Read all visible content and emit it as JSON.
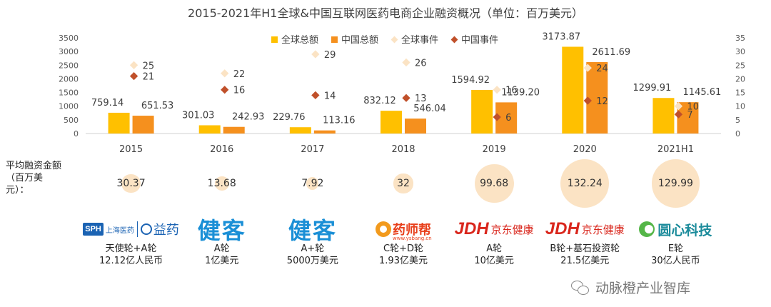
{
  "chart_data": {
    "type": "bar",
    "title": "2015-2021年H1全球&中国互联网医药电商企业融资概况（单位：百万美元）",
    "categories": [
      "2015",
      "2016",
      "2017",
      "2018",
      "2019",
      "2020",
      "2021H1"
    ],
    "series": [
      {
        "name": "全球总额",
        "type": "bar",
        "axis": "left",
        "color": "#ffc000",
        "values": [
          759.14,
          301.03,
          229.76,
          832.12,
          1594.92,
          3173.87,
          1299.91
        ],
        "labels": [
          "759.14",
          "301.03",
          "229.76",
          "832.12",
          "1594.92",
          "3173.87",
          "1299.91"
        ]
      },
      {
        "name": "中国总额",
        "type": "bar",
        "axis": "left",
        "color": "#f5901e",
        "values": [
          651.53,
          242.93,
          113.16,
          546.04,
          1139.2,
          2611.69,
          1145.61
        ],
        "labels": [
          "651.53",
          "242.93",
          "113.16",
          "546.04",
          "1139.20",
          "2611.69",
          "1145.61"
        ]
      },
      {
        "name": "全球事件",
        "type": "scatter",
        "axis": "right",
        "color": "#fbe3c4",
        "values": [
          25,
          22,
          29,
          26,
          16,
          24,
          10
        ],
        "labels": [
          "25",
          "22",
          "29",
          "26",
          "16",
          "24",
          "10"
        ]
      },
      {
        "name": "中国事件",
        "type": "scatter",
        "axis": "right",
        "color": "#c0502a",
        "values": [
          21,
          16,
          14,
          13,
          6,
          12,
          7
        ],
        "labels": [
          "21",
          "16",
          "14",
          "13",
          "6",
          "12",
          "7"
        ]
      }
    ],
    "ylim_left": [
      0,
      3500
    ],
    "yticks_left": [
      0,
      500,
      1000,
      1500,
      2000,
      2500,
      3000,
      3500
    ],
    "ylim_right": [
      0,
      35
    ],
    "yticks_right": [
      0,
      5,
      10,
      15,
      20,
      25,
      30,
      35
    ],
    "legend_position": "top-center",
    "grid": false
  },
  "avg_row": {
    "label": "平均融资金额（百万美元）：",
    "values": [
      30.37,
      13.68,
      7.92,
      32,
      99.68,
      132.24,
      129.99
    ],
    "labels": [
      "30.37",
      "13.68",
      "7.92",
      "32",
      "99.68",
      "132.24",
      "129.99"
    ]
  },
  "companies": [
    {
      "logo_parts": [
        "SPH",
        "上海医药",
        "益药"
      ],
      "round": "天使轮+A轮",
      "amount": "12.12亿人民币"
    },
    {
      "logo_parts": [
        "健客"
      ],
      "round": "A轮",
      "amount": "1亿美元"
    },
    {
      "logo_parts": [
        "健客"
      ],
      "round": "A+轮",
      "amount": "5000万美元"
    },
    {
      "logo_parts": [
        "药师帮",
        "www.ysbang.cn"
      ],
      "round": "C轮+D轮",
      "amount": "1.93亿美元"
    },
    {
      "logo_parts": [
        "JDH",
        "京东健康"
      ],
      "round": "A轮",
      "amount": "10亿美元"
    },
    {
      "logo_parts": [
        "JDH",
        "京东健康"
      ],
      "round": "B轮+基石投资轮",
      "amount": "21.5亿美元"
    },
    {
      "logo_parts": [
        "圆心科技"
      ],
      "round": "E轮",
      "amount": "30亿人民币"
    }
  ],
  "watermark": "动脉橙产业智库"
}
